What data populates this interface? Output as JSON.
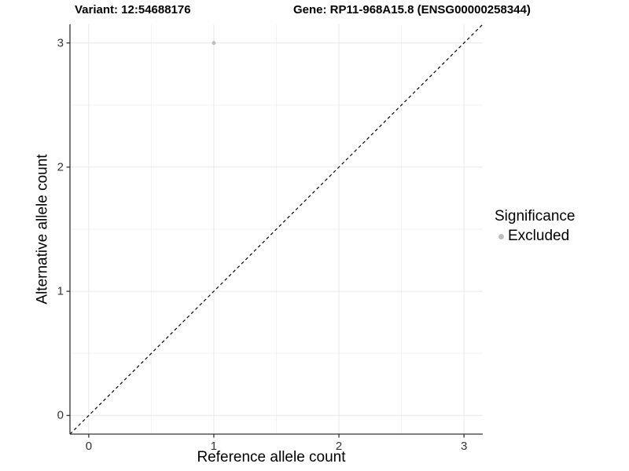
{
  "header": {
    "variant_title": "Variant: 12:54688176",
    "gene_title": "Gene: RP11-968A15.8 (ENSG00000258344)"
  },
  "chart_data": {
    "type": "scatter",
    "title_left": "Variant: 12:54688176",
    "title_right": "Gene: RP11-968A15.8 (ENSG00000258344)",
    "xlabel": "Reference allele count",
    "ylabel": "Alternative allele count",
    "xlim": [
      -0.15,
      3.15
    ],
    "ylim": [
      -0.15,
      3.15
    ],
    "x_ticks": [
      0,
      1,
      2,
      3
    ],
    "y_ticks": [
      0,
      1,
      2,
      3
    ],
    "grid": {
      "major": true,
      "minor": true
    },
    "series": [
      {
        "name": "Excluded",
        "color": "#bebebe",
        "points": [
          {
            "x": 1,
            "y": 3
          }
        ]
      }
    ],
    "reference_line": {
      "type": "identity",
      "slope": 1,
      "intercept": 0,
      "style": "dashed",
      "color": "#000000"
    },
    "legend": {
      "title": "Significance",
      "position": "right",
      "items": [
        {
          "label": "Excluded",
          "color": "#bebebe"
        }
      ]
    }
  },
  "colors": {
    "background": "#ffffff",
    "grid_major": "#e7e7e7",
    "grid_minor": "#f2f2f2",
    "axis_line": "#333333",
    "tick_text": "#333333",
    "point": "#bebebe"
  }
}
